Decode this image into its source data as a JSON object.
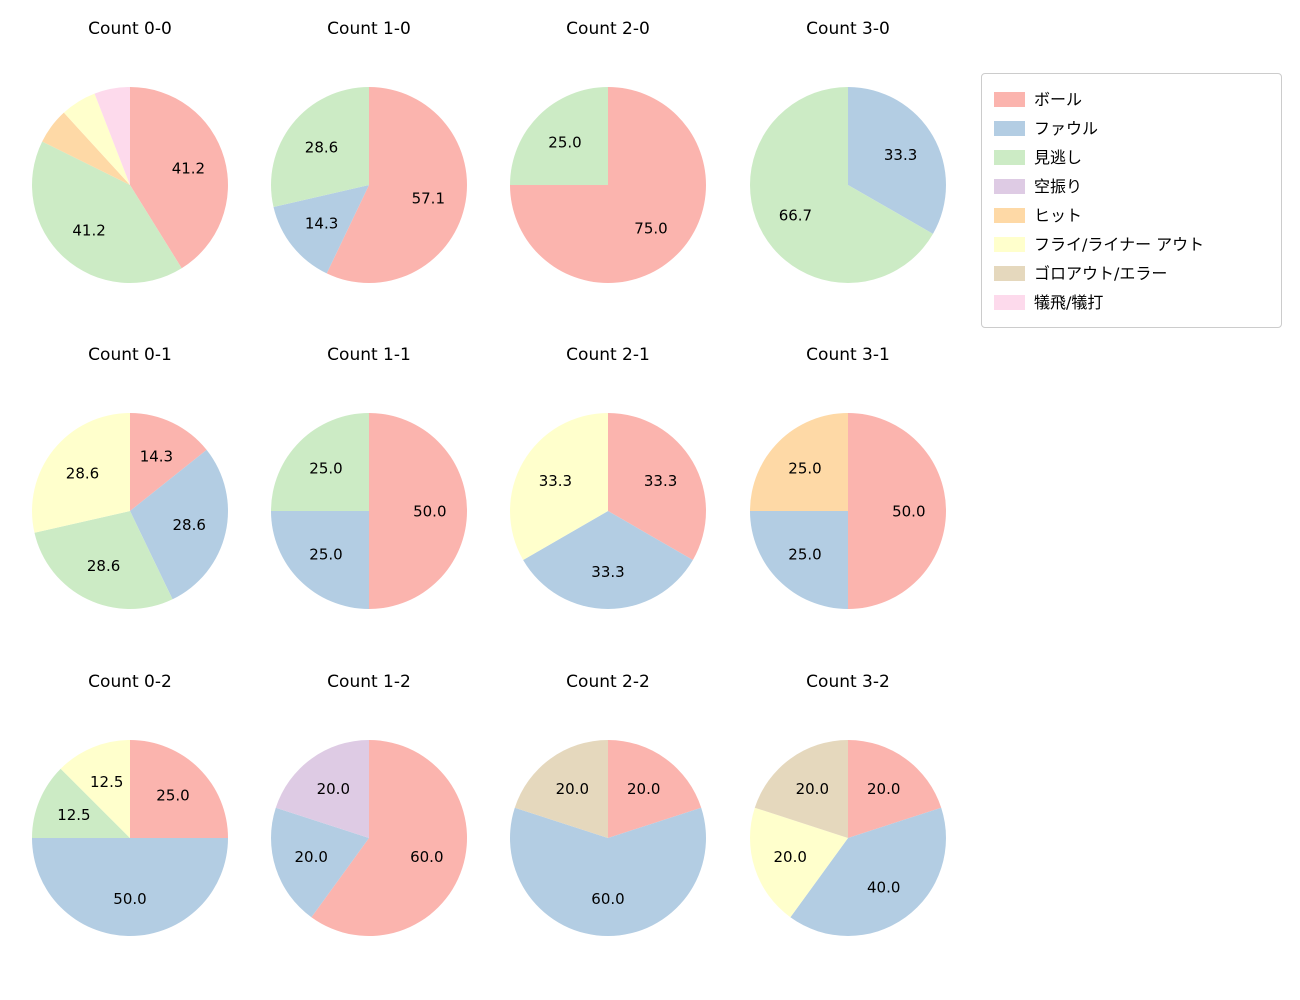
{
  "figure": {
    "background": "#ffffff",
    "grid_columns": 4,
    "grid_rows": 3
  },
  "legend": {
    "position": "top-right",
    "items": [
      {
        "label": "ボール",
        "color": "#fbb4ae"
      },
      {
        "label": "ファウル",
        "color": "#b3cde3"
      },
      {
        "label": "見逃し",
        "color": "#ccebc5"
      },
      {
        "label": "空振り",
        "color": "#decbe4"
      },
      {
        "label": "ヒット",
        "color": "#fed9a6"
      },
      {
        "label": "フライ/ライナー アウト",
        "color": "#ffffcc"
      },
      {
        "label": "ゴロアウト/エラー",
        "color": "#e5d8bd"
      },
      {
        "label": "犠飛/犠打",
        "color": "#fddaec"
      }
    ]
  },
  "chart_data": [
    {
      "type": "pie",
      "title": "Count 0-0",
      "start_angle": "top",
      "direction": "clockwise",
      "value_format": "percent",
      "slices": [
        {
          "label": "ボール",
          "value": 41.2,
          "show_value": true
        },
        {
          "label": "見逃し",
          "value": 41.2,
          "show_value": true
        },
        {
          "label": "ヒット",
          "value": 5.9,
          "show_value": false
        },
        {
          "label": "フライ/ライナー アウト",
          "value": 5.9,
          "show_value": false
        },
        {
          "label": "犠飛/犠打",
          "value": 5.9,
          "show_value": false
        }
      ]
    },
    {
      "type": "pie",
      "title": "Count 1-0",
      "start_angle": "top",
      "direction": "clockwise",
      "value_format": "percent",
      "slices": [
        {
          "label": "ボール",
          "value": 57.1,
          "show_value": true
        },
        {
          "label": "ファウル",
          "value": 14.3,
          "show_value": true
        },
        {
          "label": "見逃し",
          "value": 28.6,
          "show_value": true
        }
      ]
    },
    {
      "type": "pie",
      "title": "Count 2-0",
      "start_angle": "top",
      "direction": "clockwise",
      "value_format": "percent",
      "slices": [
        {
          "label": "ボール",
          "value": 75.0,
          "show_value": true
        },
        {
          "label": "見逃し",
          "value": 25.0,
          "show_value": true
        }
      ]
    },
    {
      "type": "pie",
      "title": "Count 3-0",
      "start_angle": "top",
      "direction": "clockwise",
      "value_format": "percent",
      "slices": [
        {
          "label": "ファウル",
          "value": 33.3,
          "show_value": true
        },
        {
          "label": "見逃し",
          "value": 66.7,
          "show_value": true
        }
      ]
    },
    {
      "type": "pie",
      "title": "Count 0-1",
      "start_angle": "top",
      "direction": "clockwise",
      "value_format": "percent",
      "slices": [
        {
          "label": "ボール",
          "value": 14.3,
          "show_value": true
        },
        {
          "label": "ファウル",
          "value": 28.6,
          "show_value": true
        },
        {
          "label": "見逃し",
          "value": 28.6,
          "show_value": true
        },
        {
          "label": "フライ/ライナー アウト",
          "value": 28.6,
          "show_value": true
        }
      ]
    },
    {
      "type": "pie",
      "title": "Count 1-1",
      "start_angle": "top",
      "direction": "clockwise",
      "value_format": "percent",
      "slices": [
        {
          "label": "ボール",
          "value": 50.0,
          "show_value": true
        },
        {
          "label": "ファウル",
          "value": 25.0,
          "show_value": true
        },
        {
          "label": "見逃し",
          "value": 25.0,
          "show_value": true
        }
      ]
    },
    {
      "type": "pie",
      "title": "Count 2-1",
      "start_angle": "top",
      "direction": "clockwise",
      "value_format": "percent",
      "slices": [
        {
          "label": "ボール",
          "value": 33.3,
          "show_value": true
        },
        {
          "label": "ファウル",
          "value": 33.3,
          "show_value": true
        },
        {
          "label": "フライ/ライナー アウト",
          "value": 33.3,
          "show_value": true
        }
      ]
    },
    {
      "type": "pie",
      "title": "Count 3-1",
      "start_angle": "top",
      "direction": "clockwise",
      "value_format": "percent",
      "slices": [
        {
          "label": "ボール",
          "value": 50.0,
          "show_value": true
        },
        {
          "label": "ファウル",
          "value": 25.0,
          "show_value": true
        },
        {
          "label": "ヒット",
          "value": 25.0,
          "show_value": true
        }
      ]
    },
    {
      "type": "pie",
      "title": "Count 0-2",
      "start_angle": "top",
      "direction": "clockwise",
      "value_format": "percent",
      "slices": [
        {
          "label": "ボール",
          "value": 25.0,
          "show_value": true
        },
        {
          "label": "ファウル",
          "value": 50.0,
          "show_value": true
        },
        {
          "label": "見逃し",
          "value": 12.5,
          "show_value": true
        },
        {
          "label": "フライ/ライナー アウト",
          "value": 12.5,
          "show_value": true
        }
      ]
    },
    {
      "type": "pie",
      "title": "Count 1-2",
      "start_angle": "top",
      "direction": "clockwise",
      "value_format": "percent",
      "slices": [
        {
          "label": "ボール",
          "value": 60.0,
          "show_value": true
        },
        {
          "label": "ファウル",
          "value": 20.0,
          "show_value": true
        },
        {
          "label": "空振り",
          "value": 20.0,
          "show_value": true
        }
      ]
    },
    {
      "type": "pie",
      "title": "Count 2-2",
      "start_angle": "top",
      "direction": "clockwise",
      "value_format": "percent",
      "slices": [
        {
          "label": "ボール",
          "value": 20.0,
          "show_value": true
        },
        {
          "label": "ファウル",
          "value": 60.0,
          "show_value": true
        },
        {
          "label": "ゴロアウト/エラー",
          "value": 20.0,
          "show_value": true
        }
      ]
    },
    {
      "type": "pie",
      "title": "Count 3-2",
      "start_angle": "top",
      "direction": "clockwise",
      "value_format": "percent",
      "slices": [
        {
          "label": "ボール",
          "value": 20.0,
          "show_value": true
        },
        {
          "label": "ファウル",
          "value": 40.0,
          "show_value": true
        },
        {
          "label": "フライ/ライナー アウト",
          "value": 20.0,
          "show_value": true
        },
        {
          "label": "ゴロアウト/エラー",
          "value": 20.0,
          "show_value": true
        }
      ]
    }
  ]
}
